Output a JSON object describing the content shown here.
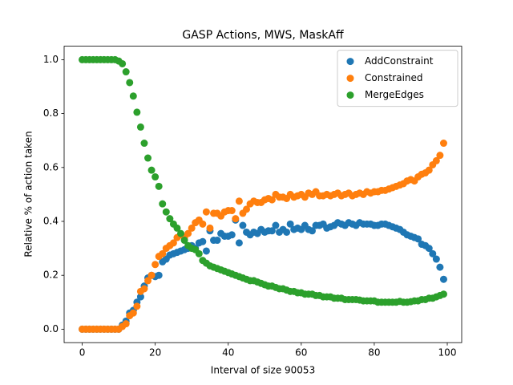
{
  "chart_data": {
    "type": "scatter",
    "title": "GASP Actions, MWS, MaskAff",
    "x_label": "Interval of size 90053",
    "y_label": "Relative % of action taken",
    "x": [
      0,
      1,
      2,
      3,
      4,
      5,
      6,
      7,
      8,
      9,
      10,
      11,
      12,
      13,
      14,
      15,
      16,
      17,
      18,
      19,
      20,
      21,
      22,
      23,
      24,
      25,
      26,
      27,
      28,
      29,
      30,
      31,
      32,
      33,
      34,
      35,
      36,
      37,
      38,
      39,
      40,
      41,
      42,
      43,
      44,
      45,
      46,
      47,
      48,
      49,
      50,
      51,
      52,
      53,
      54,
      55,
      56,
      57,
      58,
      59,
      60,
      61,
      62,
      63,
      64,
      65,
      66,
      67,
      68,
      69,
      70,
      71,
      72,
      73,
      74,
      75,
      76,
      77,
      78,
      79,
      80,
      81,
      82,
      83,
      84,
      85,
      86,
      87,
      88,
      89,
      90,
      91,
      92,
      93,
      94,
      95,
      96,
      97,
      98,
      99
    ],
    "series": [
      {
        "name": "AddConstraint",
        "color": "#1f77b4",
        "values": [
          0,
          0,
          0,
          0,
          0,
          0,
          0,
          0,
          0,
          0,
          0,
          0.015,
          0.03,
          0.06,
          0.07,
          0.1,
          0.12,
          0.16,
          0.19,
          0.2,
          0.195,
          0.2,
          0.25,
          0.26,
          0.275,
          0.28,
          0.285,
          0.29,
          0.295,
          0.3,
          0.31,
          0.3,
          0.32,
          0.325,
          0.29,
          0.365,
          0.33,
          0.33,
          0.355,
          0.345,
          0.345,
          0.35,
          0.405,
          0.32,
          0.385,
          0.36,
          0.35,
          0.36,
          0.355,
          0.37,
          0.36,
          0.365,
          0.365,
          0.385,
          0.36,
          0.37,
          0.36,
          0.39,
          0.37,
          0.375,
          0.37,
          0.385,
          0.37,
          0.365,
          0.385,
          0.385,
          0.39,
          0.375,
          0.38,
          0.385,
          0.395,
          0.39,
          0.385,
          0.395,
          0.39,
          0.385,
          0.395,
          0.39,
          0.39,
          0.39,
          0.385,
          0.385,
          0.39,
          0.39,
          0.385,
          0.38,
          0.375,
          0.37,
          0.36,
          0.35,
          0.345,
          0.34,
          0.335,
          0.315,
          0.31,
          0.3,
          0.28,
          0.26,
          0.23,
          0.185
        ]
      },
      {
        "name": "Constrained",
        "color": "#ff7f0e",
        "values": [
          0,
          0,
          0,
          0,
          0,
          0,
          0,
          0,
          0,
          0,
          0,
          0.01,
          0.02,
          0.05,
          0.06,
          0.085,
          0.14,
          0.15,
          0.18,
          0.2,
          0.24,
          0.27,
          0.28,
          0.3,
          0.31,
          0.32,
          0.34,
          0.35,
          0.34,
          0.355,
          0.375,
          0.395,
          0.405,
          0.39,
          0.435,
          0.375,
          0.43,
          0.43,
          0.42,
          0.435,
          0.44,
          0.44,
          0.41,
          0.475,
          0.43,
          0.445,
          0.465,
          0.475,
          0.47,
          0.47,
          0.48,
          0.485,
          0.48,
          0.5,
          0.49,
          0.49,
          0.485,
          0.5,
          0.49,
          0.495,
          0.5,
          0.49,
          0.505,
          0.5,
          0.51,
          0.495,
          0.495,
          0.5,
          0.495,
          0.5,
          0.505,
          0.495,
          0.5,
          0.505,
          0.495,
          0.5,
          0.505,
          0.5,
          0.51,
          0.505,
          0.51,
          0.51,
          0.515,
          0.515,
          0.52,
          0.525,
          0.53,
          0.535,
          0.54,
          0.55,
          0.555,
          0.55,
          0.565,
          0.575,
          0.58,
          0.59,
          0.61,
          0.625,
          0.645,
          0.69
        ]
      },
      {
        "name": "MergeEdges",
        "color": "#2ca02c",
        "values": [
          1,
          1,
          1,
          1,
          1,
          1,
          1,
          1,
          1,
          1,
          0.995,
          0.985,
          0.955,
          0.915,
          0.865,
          0.805,
          0.75,
          0.69,
          0.635,
          0.59,
          0.565,
          0.53,
          0.465,
          0.435,
          0.41,
          0.39,
          0.375,
          0.355,
          0.33,
          0.31,
          0.3,
          0.295,
          0.28,
          0.255,
          0.245,
          0.235,
          0.23,
          0.225,
          0.22,
          0.215,
          0.21,
          0.205,
          0.2,
          0.195,
          0.19,
          0.185,
          0.18,
          0.18,
          0.175,
          0.17,
          0.165,
          0.16,
          0.16,
          0.155,
          0.15,
          0.15,
          0.145,
          0.14,
          0.14,
          0.135,
          0.135,
          0.13,
          0.13,
          0.13,
          0.125,
          0.125,
          0.12,
          0.12,
          0.12,
          0.115,
          0.115,
          0.115,
          0.11,
          0.11,
          0.11,
          0.11,
          0.108,
          0.105,
          0.105,
          0.105,
          0.105,
          0.1,
          0.1,
          0.1,
          0.1,
          0.1,
          0.1,
          0.103,
          0.1,
          0.1,
          0.102,
          0.105,
          0.105,
          0.11,
          0.11,
          0.115,
          0.115,
          0.12,
          0.125,
          0.13
        ]
      }
    ],
    "xlim": [
      -4.95,
      103.95
    ],
    "ylim": [
      -0.05,
      1.05
    ],
    "xticks": [
      0,
      20,
      40,
      60,
      80,
      100
    ],
    "yticks": [
      {
        "value": 0,
        "label": "0.0"
      },
      0.2,
      0.4,
      0.6,
      0.8,
      {
        "value": 1,
        "label": "1.0"
      }
    ],
    "grid": false,
    "legend": "upper right"
  }
}
